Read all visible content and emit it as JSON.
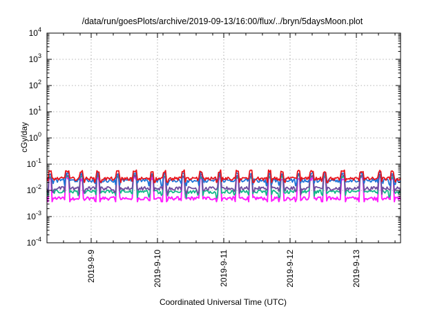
{
  "chart_data": {
    "type": "line",
    "title": "/data/run/goesPlots/archive/2019-09-13/16:00/flux/../bryn/5daysMoon.plot",
    "xlabel": "Coordinated Universal Time (UTC)",
    "ylabel": "cGy/day",
    "y_scale": "log",
    "ylim": [
      0.0001,
      10000
    ],
    "y_tick_labels": [
      {
        "base": "10",
        "exp": "-4"
      },
      {
        "base": "10",
        "exp": "-3"
      },
      {
        "base": "10",
        "exp": "-2"
      },
      {
        "base": "10",
        "exp": "-1"
      },
      {
        "base": "10",
        "exp": "0"
      },
      {
        "base": "10",
        "exp": "1"
      },
      {
        "base": "10",
        "exp": "2"
      },
      {
        "base": "10",
        "exp": "3"
      },
      {
        "base": "10",
        "exp": "4"
      }
    ],
    "x_range_days": [
      "2019-09-08 08:00",
      "2019-09-13 16:00"
    ],
    "x_tick_labels": [
      "2019-9-9",
      "2019-9-10",
      "2019-9-11",
      "2019-9-12",
      "2019-9-13"
    ],
    "grid": true,
    "legend": "none",
    "series": [
      {
        "color": "#e8131b",
        "baseline": 0.028,
        "spike_max": 0.06,
        "dip_min": 0.02
      },
      {
        "color": "#1e74d8",
        "baseline": 0.024,
        "spike_max": 0.05,
        "dip_min": 0.015
      },
      {
        "color": "#6f4aa0",
        "baseline": 0.012,
        "spike_max": 0.045,
        "dip_min": 0.005
      },
      {
        "color": "#13b88a",
        "baseline": 0.009,
        "spike_max": 0.04,
        "dip_min": 0.005
      },
      {
        "color": "#ff1dff",
        "baseline": 0.005,
        "spike_max": 0.035,
        "dip_min": 0.0037
      }
    ]
  }
}
